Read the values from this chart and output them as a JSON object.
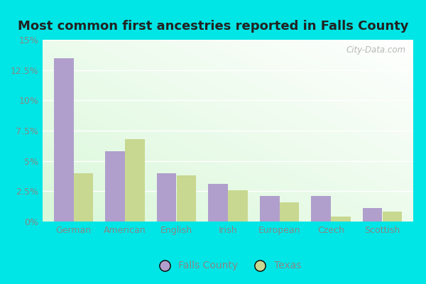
{
  "title": "Most common first ancestries reported in Falls County",
  "categories": [
    "German",
    "American",
    "English",
    "Irish",
    "European",
    "Czech",
    "Scottish"
  ],
  "falls_county": [
    13.5,
    5.8,
    4.0,
    3.1,
    2.1,
    2.1,
    1.1
  ],
  "texas": [
    4.0,
    6.8,
    3.8,
    2.6,
    1.6,
    0.4,
    0.8
  ],
  "falls_county_color": "#b09fcc",
  "texas_color": "#c8d890",
  "outer_bg": "#00e5e5",
  "title_fontsize": 13,
  "legend_labels": [
    "Falls County",
    "Texas"
  ],
  "ylim": [
    0,
    15
  ],
  "yticks": [
    0,
    2.5,
    5.0,
    7.5,
    10.0,
    12.5,
    15.0
  ],
  "ytick_labels": [
    "0%",
    "2.5%",
    "5%",
    "7.5%",
    "10%",
    "12.5%",
    "15%"
  ],
  "bar_width": 0.38,
  "watermark": "City-Data.com",
  "tick_color": "#888888"
}
